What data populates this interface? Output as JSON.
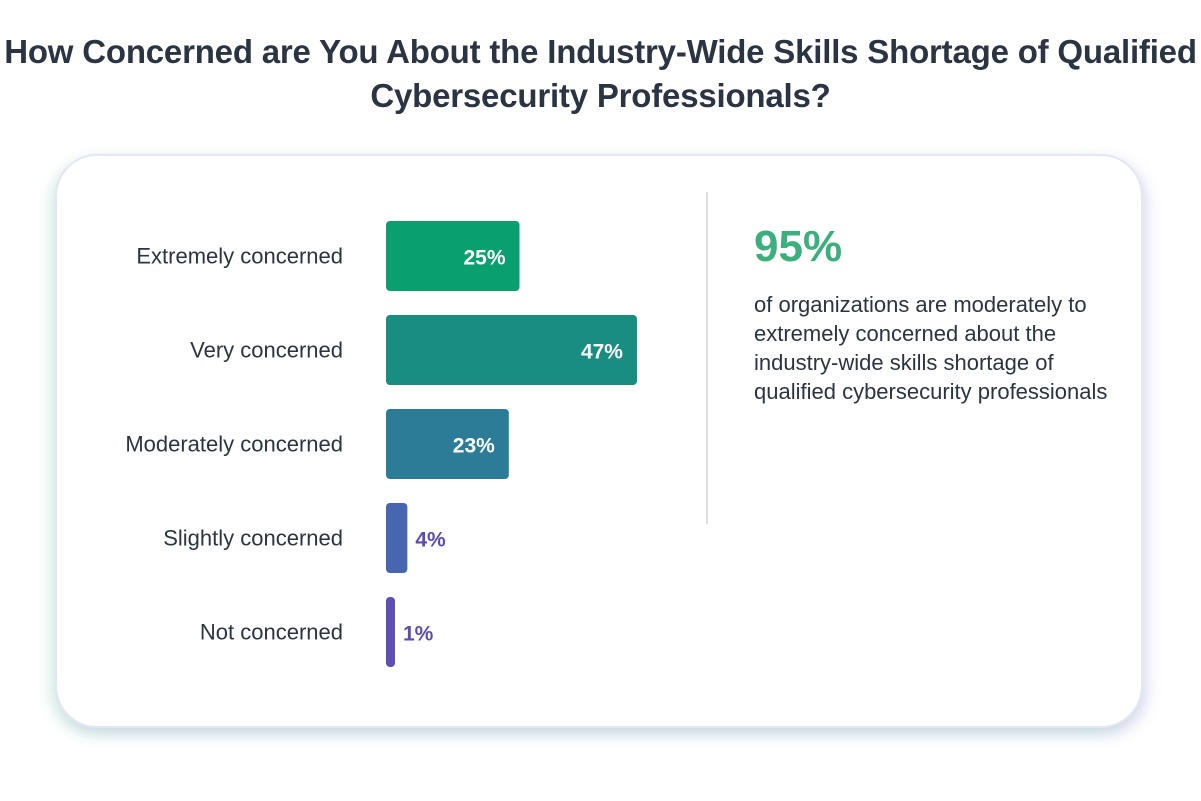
{
  "title": "How Concerned are You About the Industry-Wide Skills Shortage of Qualified Cybersecurity Professionals?",
  "chart_data": {
    "type": "bar",
    "orientation": "horizontal",
    "title": "How Concerned are You About the Industry-Wide Skills Shortage of Qualified Cybersecurity Professionals?",
    "categories": [
      "Extremely concerned",
      "Very concerned",
      "Moderately concerned",
      "Slightly concerned",
      "Not concerned"
    ],
    "values": [
      25,
      47,
      23,
      4,
      1
    ],
    "value_labels": [
      "25%",
      "47%",
      "23%",
      "4%",
      "1%"
    ],
    "unit": "%",
    "colors": [
      "#0a9f6e",
      "#198d80",
      "#2c7c98",
      "#4666b0",
      "#5e4eb6"
    ],
    "outside_label_color": "#5b4bb5",
    "xlim": [
      0,
      50
    ],
    "grid": false,
    "legend": "none"
  },
  "callout": {
    "value": "95%",
    "text": "of organizations are moderately to extremely concerned about the industry-wide skills shortage of qualified cybersecurity professionals"
  }
}
